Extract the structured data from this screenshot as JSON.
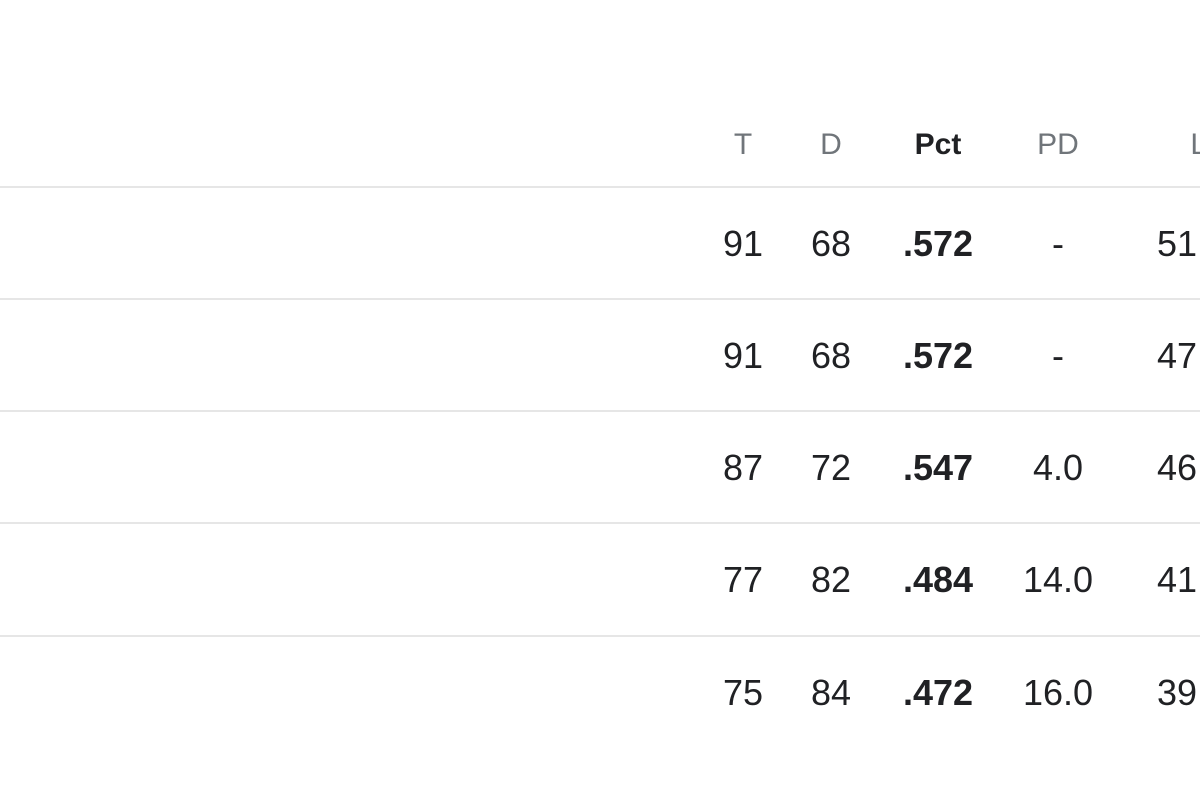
{
  "table": {
    "headers": [
      "T",
      "D",
      "Pct",
      "PD",
      "Lo"
    ],
    "rows": [
      [
        "91",
        "68",
        ".572",
        "-",
        "51"
      ],
      [
        "91",
        "68",
        ".572",
        "-",
        "47"
      ],
      [
        "87",
        "72",
        ".547",
        "4.0",
        "46"
      ],
      [
        "77",
        "82",
        ".484",
        "14.0",
        "41"
      ],
      [
        "75",
        "84",
        ".472",
        "16.0",
        "39"
      ]
    ]
  }
}
